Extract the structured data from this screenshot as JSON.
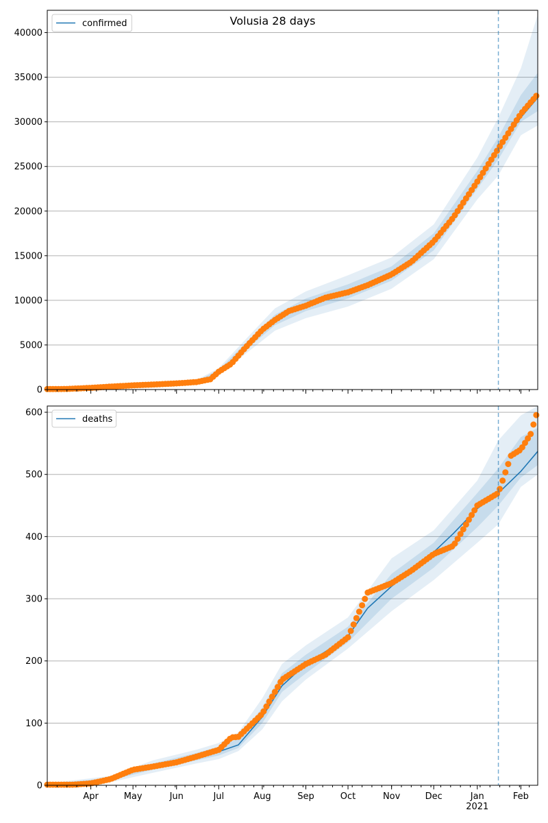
{
  "chart_data": [
    {
      "type": "line",
      "title": "Volusia 28 days",
      "xlabel": "",
      "ylabel": "",
      "ylim": [
        0,
        42500
      ],
      "yticks": [
        0,
        5000,
        10000,
        15000,
        20000,
        25000,
        30000,
        35000,
        40000
      ],
      "xlim": [
        "2020-03-01",
        "2021-02-13"
      ],
      "x_tick_labels": [],
      "grid": "horizontal",
      "legend": {
        "placement": "top-left",
        "entries": [
          "confirmed"
        ]
      },
      "forecast_start": "2021-01-16",
      "series": [
        {
          "name": "confirmed",
          "kind": "model_line",
          "x": [
            "2020-03-01",
            "2020-03-15",
            "2020-04-01",
            "2020-04-15",
            "2020-05-01",
            "2020-05-15",
            "2020-06-01",
            "2020-06-15",
            "2020-06-25",
            "2020-07-01",
            "2020-07-10",
            "2020-07-20",
            "2020-08-01",
            "2020-08-10",
            "2020-08-20",
            "2020-09-01",
            "2020-09-15",
            "2020-10-01",
            "2020-10-15",
            "2020-11-01",
            "2020-11-15",
            "2020-12-01",
            "2020-12-15",
            "2021-01-01",
            "2021-01-16",
            "2021-02-01",
            "2021-02-13"
          ],
          "y": [
            60,
            80,
            200,
            350,
            480,
            580,
            700,
            850,
            1200,
            2000,
            3000,
            4800,
            6800,
            7800,
            8700,
            9500,
            10300,
            11000,
            11800,
            13000,
            14500,
            16500,
            19500,
            23500,
            27000,
            30500,
            32700
          ]
        },
        {
          "name": "observed",
          "kind": "points",
          "x": [
            "2020-03-01",
            "2020-03-15",
            "2020-04-01",
            "2020-04-15",
            "2020-05-01",
            "2020-05-15",
            "2020-06-01",
            "2020-06-15",
            "2020-06-25",
            "2020-07-01",
            "2020-07-10",
            "2020-07-20",
            "2020-08-01",
            "2020-08-10",
            "2020-08-20",
            "2020-09-01",
            "2020-09-15",
            "2020-10-01",
            "2020-10-15",
            "2020-11-01",
            "2020-11-15",
            "2020-12-01",
            "2020-12-15",
            "2021-01-01",
            "2021-01-16",
            "2021-01-25",
            "2021-02-01",
            "2021-02-13"
          ],
          "y": [
            50,
            70,
            190,
            330,
            470,
            560,
            690,
            840,
            1150,
            2000,
            2900,
            4700,
            6700,
            7800,
            8800,
            9400,
            10300,
            10900,
            11700,
            12900,
            14300,
            16600,
            19300,
            23300,
            27000,
            29200,
            30900,
            33100
          ]
        }
      ],
      "bands": {
        "x": [
          "2020-03-01",
          "2020-05-01",
          "2020-06-15",
          "2020-07-01",
          "2020-07-20",
          "2020-08-10",
          "2020-09-01",
          "2020-10-01",
          "2020-11-01",
          "2020-12-01",
          "2021-01-01",
          "2021-01-16",
          "2021-02-01",
          "2021-02-13"
        ],
        "outer_low": [
          0,
          380,
          700,
          1600,
          4000,
          6600,
          8000,
          9300,
          11300,
          14600,
          21300,
          24000,
          28500,
          29600
        ],
        "outer_high": [
          250,
          650,
          1050,
          2400,
          5600,
          9100,
          11000,
          12800,
          14800,
          18500,
          26000,
          30500,
          36000,
          42000
        ],
        "inner_low": [
          20,
          430,
          760,
          1800,
          4400,
          7200,
          8800,
          10200,
          12200,
          15600,
          22500,
          25800,
          30000,
          31200
        ],
        "inner_high": [
          150,
          560,
          950,
          2200,
          5200,
          8400,
          10200,
          11800,
          13800,
          17500,
          24500,
          28300,
          33000,
          35500
        ]
      }
    },
    {
      "type": "line",
      "title": "",
      "xlabel": "",
      "ylabel": "",
      "ylim": [
        0,
        610
      ],
      "yticks": [
        0,
        100,
        200,
        300,
        400,
        500,
        600
      ],
      "xlim": [
        "2020-03-01",
        "2021-02-13"
      ],
      "x_tick_labels": [
        "Apr",
        "May",
        "Jun",
        "Jul",
        "Aug",
        "Sep",
        "Oct",
        "Nov",
        "Dec",
        "Jan\n2021",
        "Feb"
      ],
      "x_tick_dates": [
        "2020-04-01",
        "2020-05-01",
        "2020-06-01",
        "2020-07-01",
        "2020-08-01",
        "2020-09-01",
        "2020-10-01",
        "2020-11-01",
        "2020-12-01",
        "2021-01-01",
        "2021-02-01"
      ],
      "grid": "horizontal",
      "legend": {
        "placement": "top-left",
        "entries": [
          "deaths"
        ]
      },
      "forecast_start": "2021-01-16",
      "series": [
        {
          "name": "deaths",
          "kind": "model_line",
          "x": [
            "2020-03-01",
            "2020-03-20",
            "2020-04-01",
            "2020-04-15",
            "2020-05-01",
            "2020-05-15",
            "2020-06-01",
            "2020-06-15",
            "2020-07-01",
            "2020-07-15",
            "2020-08-01",
            "2020-08-15",
            "2020-09-01",
            "2020-09-15",
            "2020-10-01",
            "2020-10-15",
            "2020-11-01",
            "2020-11-15",
            "2020-12-01",
            "2020-12-15",
            "2021-01-01",
            "2021-01-16",
            "2021-02-01",
            "2021-02-13"
          ],
          "y": [
            1,
            1,
            3,
            10,
            22,
            30,
            38,
            46,
            54,
            65,
            110,
            160,
            195,
            215,
            240,
            285,
            320,
            345,
            375,
            405,
            445,
            470,
            505,
            537
          ]
        },
        {
          "name": "observed",
          "kind": "points",
          "x": [
            "2020-03-01",
            "2020-03-20",
            "2020-04-01",
            "2020-04-15",
            "2020-05-01",
            "2020-05-15",
            "2020-06-01",
            "2020-06-15",
            "2020-07-01",
            "2020-07-10",
            "2020-07-15",
            "2020-08-01",
            "2020-08-15",
            "2020-09-01",
            "2020-09-15",
            "2020-10-01",
            "2020-10-15",
            "2020-11-01",
            "2020-11-15",
            "2020-12-01",
            "2020-12-15",
            "2021-01-01",
            "2021-01-16",
            "2021-01-25",
            "2021-02-01",
            "2021-02-08",
            "2021-02-13"
          ],
          "y": [
            1,
            1,
            3,
            10,
            25,
            30,
            37,
            46,
            57,
            77,
            78,
            115,
            170,
            195,
            210,
            238,
            310,
            325,
            345,
            372,
            385,
            450,
            470,
            530,
            540,
            565,
            603
          ]
        }
      ],
      "bands": {
        "x": [
          "2020-03-01",
          "2020-04-15",
          "2020-05-15",
          "2020-06-15",
          "2020-07-01",
          "2020-07-15",
          "2020-08-01",
          "2020-08-15",
          "2020-09-01",
          "2020-10-01",
          "2020-11-01",
          "2020-12-01",
          "2021-01-01",
          "2021-01-16",
          "2021-02-01",
          "2021-02-13"
        ],
        "outer_low": [
          0,
          5,
          20,
          35,
          42,
          55,
          90,
          135,
          170,
          220,
          280,
          330,
          390,
          420,
          480,
          500
        ],
        "outer_high": [
          3,
          15,
          40,
          57,
          68,
          85,
          140,
          195,
          225,
          270,
          365,
          410,
          490,
          555,
          595,
          610
        ],
        "inner_low": [
          0,
          8,
          25,
          40,
          48,
          60,
          100,
          150,
          180,
          230,
          300,
          350,
          415,
          450,
          495,
          515
        ],
        "inner_high": [
          2,
          12,
          35,
          52,
          62,
          75,
          125,
          180,
          210,
          255,
          340,
          390,
          470,
          510,
          560,
          575
        ]
      }
    }
  ],
  "colors": {
    "line": "#1f77b4",
    "points": "#ff7f0e",
    "band": "#1f77b4",
    "grid": "#b0b0b0",
    "forecast_line": "#1f77b4"
  }
}
